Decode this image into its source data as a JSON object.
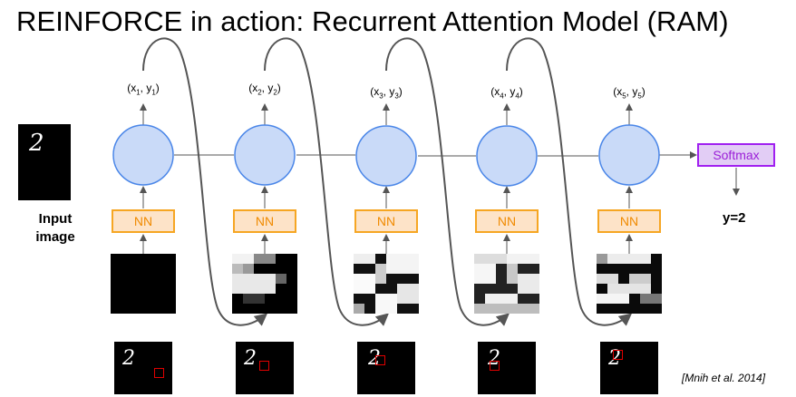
{
  "title": "REINFORCE in action: Recurrent Attention Model (RAM)",
  "input_label_line1": "Input",
  "input_label_line2": "image",
  "steps": [
    {
      "coord_x": "x",
      "coord_y": "y",
      "index": "1",
      "nn_label": "NN"
    },
    {
      "coord_x": "x",
      "coord_y": "y",
      "index": "2",
      "nn_label": "NN"
    },
    {
      "coord_x": "x",
      "coord_y": "y",
      "index": "3",
      "nn_label": "NN"
    },
    {
      "coord_x": "x",
      "coord_y": "y",
      "index": "4",
      "nn_label": "NN"
    },
    {
      "coord_x": "x",
      "coord_y": "y",
      "index": "5",
      "nn_label": "NN"
    }
  ],
  "softmax_label": "Softmax",
  "output_label": "y=2",
  "citation": "[Mnih et al. 2014]",
  "digit_glyph": "2",
  "colors": {
    "node_fill": "#c9daf8",
    "node_stroke": "#4a86e8",
    "nn_fill": "#fde3c8",
    "nn_stroke": "#f6a623",
    "softmax_fill": "#e2cdf5",
    "softmax_stroke": "#a020f0",
    "arrow": "#555555",
    "glimpse_box": "#e00000"
  }
}
